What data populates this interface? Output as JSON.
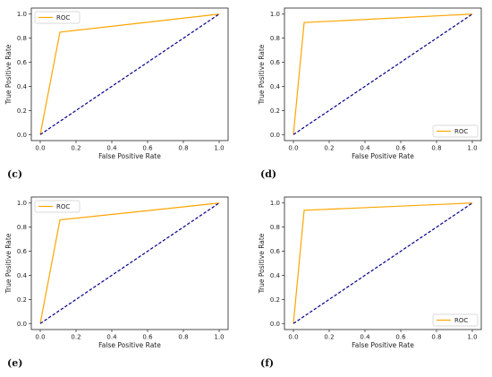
{
  "chart_data": [
    {
      "type": "line",
      "panel_label": "(c)",
      "xlabel": "False Positive Rate",
      "ylabel": "True Positive Rate",
      "xlim": [
        0,
        1
      ],
      "ylim": [
        0,
        1
      ],
      "xticks": [
        "0.0",
        "0.2",
        "0.4",
        "0.6",
        "0.8",
        "1.0"
      ],
      "yticks": [
        "0.0",
        "0.2",
        "0.4",
        "0.6",
        "0.8",
        "1.0"
      ],
      "legend_location": "upper-left",
      "grid": false,
      "series": [
        {
          "name": "ROC",
          "color": "#FFA500",
          "style": "solid",
          "x": [
            0,
            0.11,
            1.0
          ],
          "y": [
            0,
            0.85,
            1.0
          ]
        },
        {
          "color": "#00008B",
          "style": "dashed",
          "x": [
            0,
            1
          ],
          "y": [
            0,
            1
          ]
        }
      ]
    },
    {
      "type": "line",
      "panel_label": "(d)",
      "xlabel": "False Positive Rate",
      "ylabel": "True Positive Rate",
      "xlim": [
        0,
        1
      ],
      "ylim": [
        0,
        1
      ],
      "xticks": [
        "0.0",
        "0.2",
        "0.4",
        "0.6",
        "0.8",
        "1.0"
      ],
      "yticks": [
        "0.0",
        "0.2",
        "0.4",
        "0.6",
        "0.8",
        "1.0"
      ],
      "legend_location": "lower-right",
      "grid": false,
      "series": [
        {
          "name": "ROC",
          "color": "#FFA500",
          "style": "solid",
          "x": [
            0,
            0.06,
            1.0
          ],
          "y": [
            0,
            0.93,
            1.0
          ]
        },
        {
          "color": "#00008B",
          "style": "dashed",
          "x": [
            0,
            1
          ],
          "y": [
            0,
            1
          ]
        }
      ]
    },
    {
      "type": "line",
      "panel_label": "(e)",
      "xlabel": "False Positive Rate",
      "ylabel": "True Positive Rate",
      "xlim": [
        0,
        1
      ],
      "ylim": [
        0,
        1
      ],
      "xticks": [
        "0.0",
        "0.2",
        "0.4",
        "0.6",
        "0.8",
        "1.0"
      ],
      "yticks": [
        "0.0",
        "0.2",
        "0.4",
        "0.6",
        "0.8",
        "1.0"
      ],
      "legend_location": "upper-left",
      "grid": false,
      "series": [
        {
          "name": "ROC",
          "color": "#FFA500",
          "style": "solid",
          "x": [
            0,
            0.11,
            1.0
          ],
          "y": [
            0,
            0.86,
            1.0
          ]
        },
        {
          "color": "#00008B",
          "style": "dashed",
          "x": [
            0,
            1
          ],
          "y": [
            0,
            1
          ]
        }
      ]
    },
    {
      "type": "line",
      "panel_label": "(f)",
      "xlabel": "False Positive Rate",
      "ylabel": "True Positive Rate",
      "xlim": [
        0,
        1
      ],
      "ylim": [
        0,
        1
      ],
      "xticks": [
        "0.0",
        "0.2",
        "0.4",
        "0.6",
        "0.8",
        "1.0"
      ],
      "yticks": [
        "0.0",
        "0.2",
        "0.4",
        "0.6",
        "0.8",
        "1.0"
      ],
      "legend_location": "lower-right",
      "grid": false,
      "series": [
        {
          "name": "ROC",
          "color": "#FFA500",
          "style": "solid",
          "x": [
            0,
            0.06,
            1.0
          ],
          "y": [
            0,
            0.94,
            1.0
          ]
        },
        {
          "color": "#00008B",
          "style": "dashed",
          "x": [
            0,
            1
          ],
          "y": [
            0,
            1
          ]
        }
      ]
    }
  ]
}
